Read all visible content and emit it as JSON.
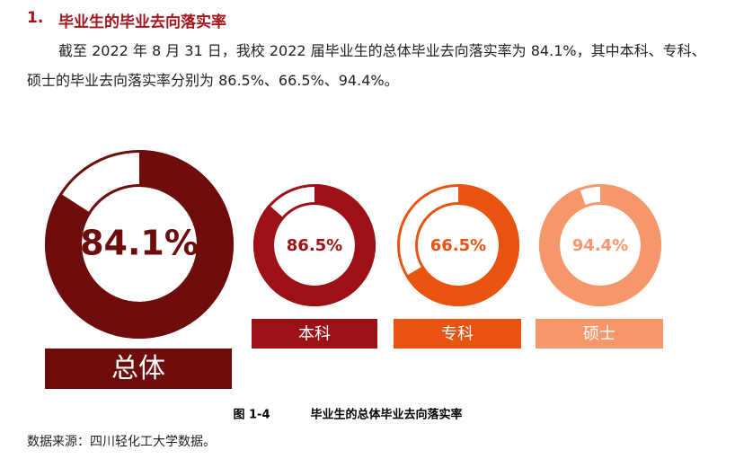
{
  "heading": {
    "number": "1.",
    "title": "毕业生的毕业去向落实率"
  },
  "paragraph": "截至 2022 年 8 月 31 日，我校 2022 届毕业生的总体毕业去向落实率为 84.1%，其中本科、专科、硕士的毕业去向落实率分别为 86.5%、66.5%、94.4%。",
  "chart_data": {
    "type": "donut",
    "categories": [
      "总体",
      "本科",
      "专科",
      "硕士"
    ],
    "values": [
      84.1,
      86.5,
      66.5,
      94.4
    ],
    "value_labels": [
      "84.1%",
      "86.5%",
      "66.5%",
      "94.4%"
    ],
    "colors": [
      "#6e0c0c",
      "#9c1016",
      "#e8540f",
      "#f5966b"
    ],
    "total": 100
  },
  "caption": {
    "label": "图 1-4",
    "title": "毕业生的总体毕业去向落实率"
  },
  "source": "数据来源：四川轻化工大学数据。"
}
